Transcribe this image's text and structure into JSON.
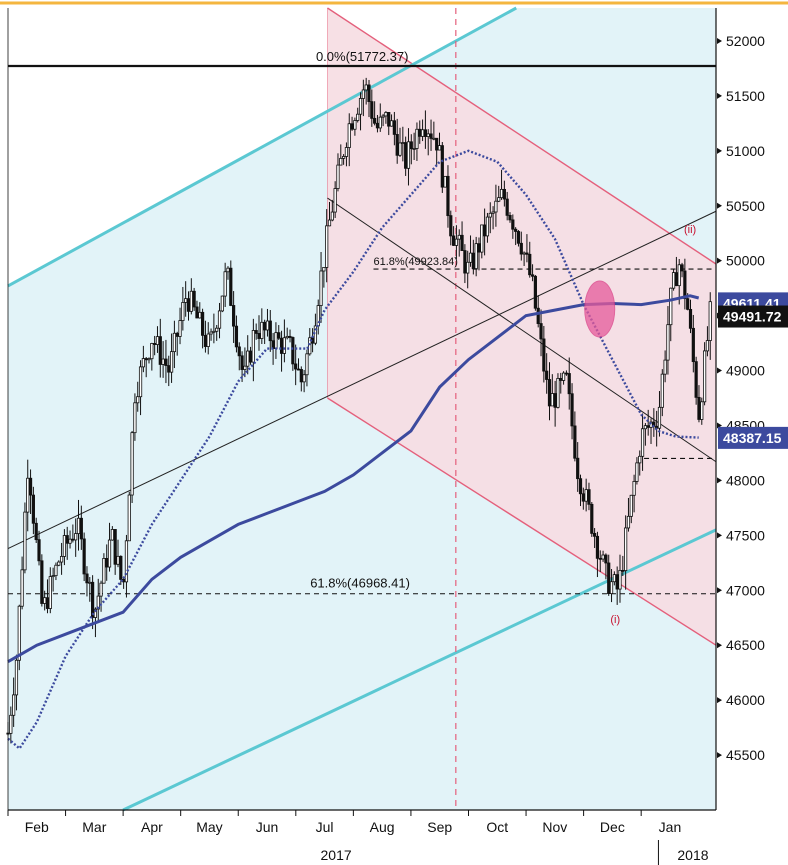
{
  "chart_data": {
    "type": "candlestick",
    "y_ticks": [
      45500,
      46000,
      46500,
      47000,
      47500,
      48000,
      48500,
      49000,
      49500,
      50000,
      50500,
      51000,
      51500,
      52000
    ],
    "ylim": [
      45000,
      52300
    ],
    "xlim": [
      0,
      12.3
    ],
    "months": [
      {
        "label": "Feb",
        "x": 1.0
      },
      {
        "label": "Mar",
        "x": 2.0
      },
      {
        "label": "Apr",
        "x": 3.0
      },
      {
        "label": "May",
        "x": 4.0
      },
      {
        "label": "Jun",
        "x": 5.0
      },
      {
        "label": "Jul",
        "x": 6.0
      },
      {
        "label": "Aug",
        "x": 7.0
      },
      {
        "label": "Sep",
        "x": 8.0
      },
      {
        "label": "Oct",
        "x": 9.0
      },
      {
        "label": "Nov",
        "x": 10.0
      },
      {
        "label": "Dec",
        "x": 11.0
      },
      {
        "label": "Jan",
        "x": 12.0
      }
    ],
    "years": [
      {
        "label": "2017",
        "x": 5.7
      },
      {
        "label": "2018",
        "x": 11.9
      }
    ],
    "price_keypoints": [
      [
        0.0,
        45700
      ],
      [
        0.15,
        46400
      ],
      [
        0.35,
        48200
      ],
      [
        0.6,
        46800
      ],
      [
        0.9,
        47300
      ],
      [
        1.2,
        47600
      ],
      [
        1.5,
        46800
      ],
      [
        1.8,
        47500
      ],
      [
        2.0,
        47000
      ],
      [
        2.2,
        48800
      ],
      [
        2.5,
        49300
      ],
      [
        2.8,
        49000
      ],
      [
        3.1,
        49700
      ],
      [
        3.5,
        49200
      ],
      [
        3.8,
        49900
      ],
      [
        4.1,
        48900
      ],
      [
        4.3,
        49400
      ],
      [
        4.6,
        49300
      ],
      [
        4.9,
        49200
      ],
      [
        5.1,
        48900
      ],
      [
        5.3,
        49400
      ],
      [
        5.6,
        50400
      ],
      [
        5.9,
        51200
      ],
      [
        6.2,
        51600
      ],
      [
        6.4,
        51200
      ],
      [
        6.6,
        51300
      ],
      [
        6.9,
        50900
      ],
      [
        7.2,
        51300
      ],
      [
        7.45,
        51100
      ],
      [
        7.7,
        50300
      ],
      [
        8.0,
        49900
      ],
      [
        8.3,
        50300
      ],
      [
        8.6,
        50600
      ],
      [
        8.9,
        50200
      ],
      [
        9.1,
        49800
      ],
      [
        9.4,
        48700
      ],
      [
        9.7,
        48900
      ],
      [
        9.9,
        48100
      ],
      [
        10.2,
        47500
      ],
      [
        10.4,
        47100
      ],
      [
        10.6,
        47000
      ],
      [
        10.8,
        47700
      ],
      [
        11.0,
        48400
      ],
      [
        11.3,
        48600
      ],
      [
        11.5,
        49600
      ],
      [
        11.65,
        50000
      ],
      [
        11.8,
        49600
      ],
      [
        12.0,
        48600
      ],
      [
        12.2,
        49500
      ]
    ],
    "ma_solid_keypoints": [
      [
        0.0,
        46350
      ],
      [
        0.5,
        46500
      ],
      [
        1.0,
        46600
      ],
      [
        1.5,
        46700
      ],
      [
        2.0,
        46800
      ],
      [
        2.5,
        47100
      ],
      [
        3.0,
        47300
      ],
      [
        3.5,
        47450
      ],
      [
        4.0,
        47600
      ],
      [
        4.5,
        47700
      ],
      [
        5.0,
        47800
      ],
      [
        5.5,
        47900
      ],
      [
        6.0,
        48050
      ],
      [
        6.5,
        48250
      ],
      [
        7.0,
        48450
      ],
      [
        7.5,
        48850
      ],
      [
        8.0,
        49100
      ],
      [
        8.5,
        49300
      ],
      [
        9.0,
        49500
      ],
      [
        9.5,
        49550
      ],
      [
        10.0,
        49600
      ],
      [
        10.5,
        49610
      ],
      [
        11.0,
        49600
      ],
      [
        11.5,
        49640
      ],
      [
        11.85,
        49680
      ],
      [
        12.0,
        49660
      ]
    ],
    "ma_dotted_keypoints": [
      [
        0.0,
        45650
      ],
      [
        0.2,
        45560
      ],
      [
        0.5,
        45800
      ],
      [
        1.0,
        46400
      ],
      [
        1.5,
        46800
      ],
      [
        2.0,
        47100
      ],
      [
        2.5,
        47600
      ],
      [
        3.0,
        48000
      ],
      [
        3.5,
        48400
      ],
      [
        4.0,
        48900
      ],
      [
        4.5,
        49200
      ],
      [
        5.0,
        49200
      ],
      [
        5.2,
        49200
      ],
      [
        5.5,
        49550
      ],
      [
        6.0,
        49900
      ],
      [
        6.5,
        50300
      ],
      [
        7.0,
        50600
      ],
      [
        7.5,
        50900
      ],
      [
        8.0,
        51000
      ],
      [
        8.5,
        50900
      ],
      [
        9.0,
        50600
      ],
      [
        9.5,
        50200
      ],
      [
        10.0,
        49600
      ],
      [
        10.5,
        49100
      ],
      [
        11.0,
        48600
      ],
      [
        11.3,
        48450
      ],
      [
        11.6,
        48400
      ],
      [
        12.0,
        48390
      ]
    ],
    "hlines": [
      {
        "name": "fib-0",
        "y": 51772.37,
        "label": "0.0%(51772.37)",
        "style": "solid"
      },
      {
        "name": "fib-618-upper",
        "y": 49923.84,
        "label": "61.8%(49923.84)",
        "style": "dashed"
      },
      {
        "name": "fib-618-lower",
        "y": 46968.41,
        "label": "61.8%(46968.41)",
        "style": "dashed"
      },
      {
        "name": "support",
        "y": 48200,
        "label": "",
        "style": "dashed"
      }
    ],
    "wave_labels": [
      {
        "label": "(ii)",
        "x": 11.85,
        "y": 50250
      },
      {
        "label": "(i)",
        "x": 10.55,
        "y": 46700
      }
    ],
    "tags": [
      {
        "name": "tag-ma-solid",
        "value": "49611.41",
        "y": 49611.41,
        "bg": "#3c4a9e",
        "fg": "#ffffff"
      },
      {
        "name": "tag-last-price",
        "value": "49491.72",
        "y": 49491.72,
        "bg": "#111111",
        "fg": "#ffffff"
      },
      {
        "name": "tag-ma-dotted",
        "value": "48387.15",
        "y": 48387.15,
        "bg": "#3c4a9e",
        "fg": "#ffffff"
      }
    ]
  },
  "colors": {
    "channel_fill": "#e2f3f8",
    "channel_line": "#5bc8d2",
    "range_fill": "#f6dde3",
    "red_line": "#e4607c",
    "ma": "#3c4a9e",
    "candle": "#111111",
    "circle": "#e65a9b",
    "top_line": "#f4b63f"
  }
}
